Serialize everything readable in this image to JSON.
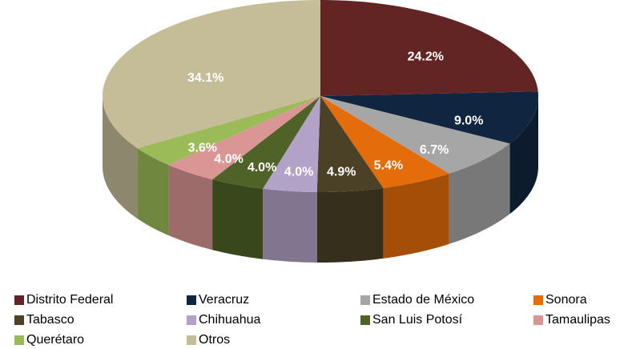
{
  "chart_data": {
    "type": "pie3d",
    "categories": [
      "Distrito Federal",
      "Veracruz",
      "Estado de México",
      "Sonora",
      "Tabasco",
      "Chihuahua",
      "San Luis Potosí",
      "Tamaulipas",
      "Querétaro",
      "Otros"
    ],
    "values": [
      24.2,
      9.0,
      6.7,
      5.4,
      4.9,
      4.0,
      4.0,
      4.0,
      3.6,
      34.1
    ],
    "value_labels": [
      "24.2%",
      "9.0%",
      "6.7%",
      "5.4%",
      "4.9%",
      "4.0%",
      "4.0%",
      "4.0%",
      "3.6%",
      "34.1%"
    ],
    "colors": [
      "#632523",
      "#10253f",
      "#a6a6a6",
      "#e46c0a",
      "#4a4126",
      "#b3a2c7",
      "#4f6228",
      "#d99694",
      "#9bbb59",
      "#c4bd97"
    ],
    "legend": "bottom"
  }
}
